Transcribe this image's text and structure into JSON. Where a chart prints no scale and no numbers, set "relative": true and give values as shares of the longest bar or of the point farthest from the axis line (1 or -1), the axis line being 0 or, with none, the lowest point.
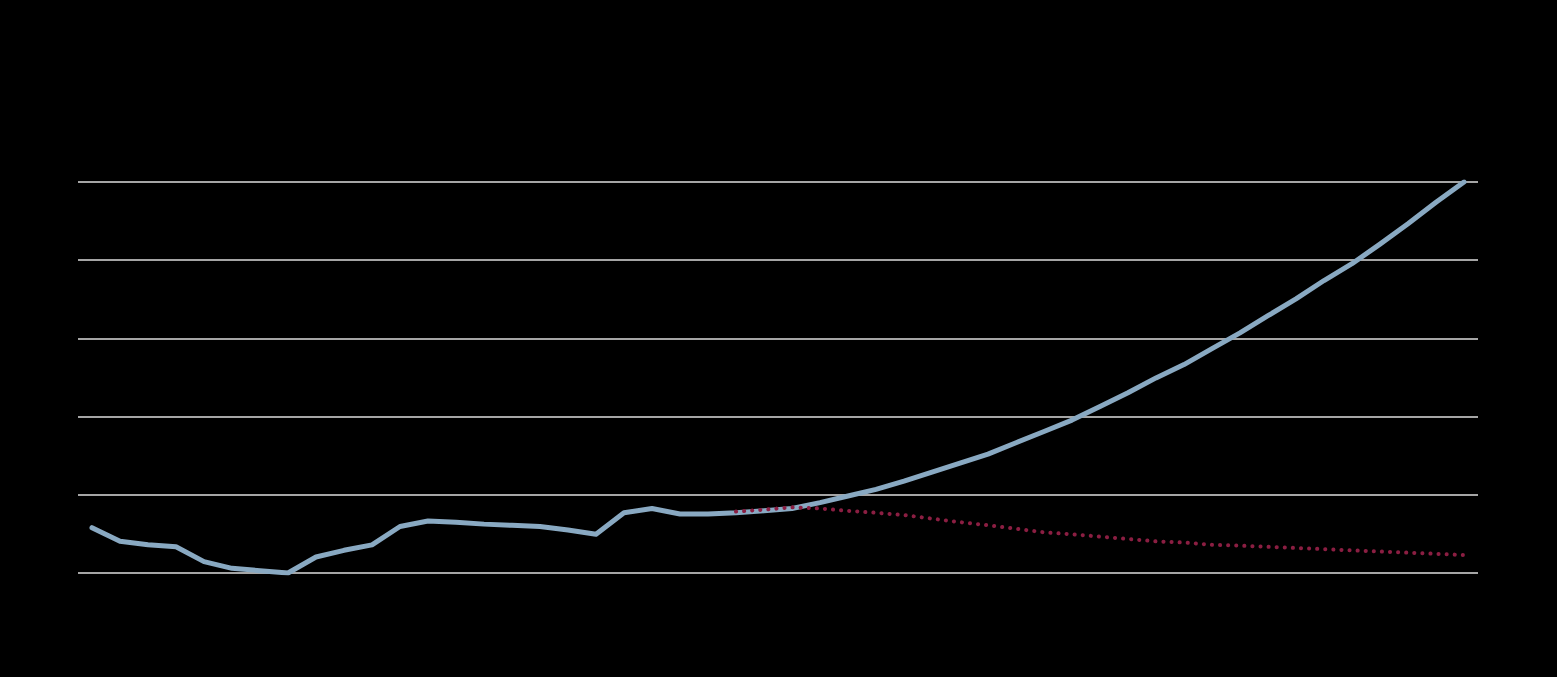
{
  "chart_data": {
    "type": "line",
    "relative": true,
    "grid": "y",
    "categories": [
      null,
      null,
      null,
      null,
      null,
      null,
      null,
      null,
      null,
      null,
      null,
      null,
      null,
      null,
      null,
      null,
      null,
      null,
      null,
      null,
      null,
      null,
      null,
      null,
      null,
      null,
      null,
      null,
      null,
      null,
      null,
      null,
      null,
      null,
      null,
      null,
      null,
      null,
      null,
      null,
      null,
      null,
      null,
      null,
      null,
      null,
      null,
      null,
      null,
      null
    ],
    "series": [
      {
        "color": "#89a9c2",
        "line_style": "solid",
        "values": [
          0.116,
          0.081,
          0.072,
          0.067,
          0.029,
          0.012,
          0.006,
          0,
          0.041,
          0.058,
          0.072,
          0.119,
          0.133,
          0.13,
          0.125,
          0.122,
          0.119,
          0.11,
          0.099,
          0.154,
          0.165,
          0.151,
          0.151,
          0.154,
          0.159,
          0.165,
          0.18,
          0.197,
          0.214,
          0.235,
          0.258,
          0.281,
          0.304,
          0.333,
          0.362,
          0.391,
          0.426,
          0.461,
          0.499,
          0.533,
          0.574,
          0.614,
          0.658,
          0.701,
          0.748,
          0.791,
          0.841,
          0.893,
          0.948,
          1
        ]
      },
      {
        "color": "#8b1e42",
        "line_style": "dotted",
        "values": [
          null,
          null,
          null,
          null,
          null,
          null,
          null,
          null,
          null,
          null,
          null,
          null,
          null,
          null,
          null,
          null,
          null,
          null,
          null,
          null,
          null,
          null,
          null,
          0.157,
          0.162,
          0.168,
          0.165,
          0.159,
          0.154,
          0.148,
          0.139,
          0.13,
          0.122,
          0.113,
          0.104,
          0.099,
          0.093,
          0.087,
          0.081,
          0.078,
          0.072,
          0.07,
          0.067,
          0.064,
          0.061,
          0.058,
          0.055,
          0.052,
          0.049,
          0.046
        ]
      }
    ]
  }
}
